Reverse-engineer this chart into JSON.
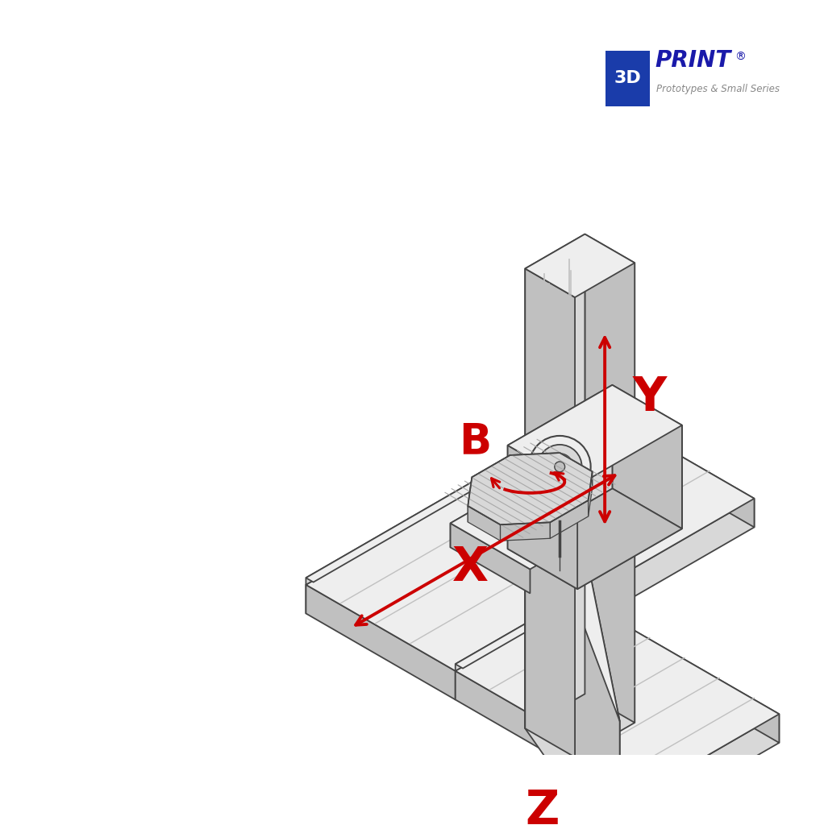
{
  "background_color": "#ffffff",
  "line_color": "#555555",
  "line_color_dark": "#444444",
  "fill_light": "#eeeeee",
  "fill_medium": "#d8d8d8",
  "fill_dark": "#c0c0c0",
  "fill_darker": "#a8a8a8",
  "red_color": "#cc0000",
  "logo_rect_color": "#1a3caa",
  "logo_text_color": "#1a1aaa",
  "label_X": "X",
  "label_Y": "Y",
  "label_Z": "Z",
  "label_B": "B",
  "figsize": [
    10.22,
    10.24
  ],
  "dpi": 100
}
